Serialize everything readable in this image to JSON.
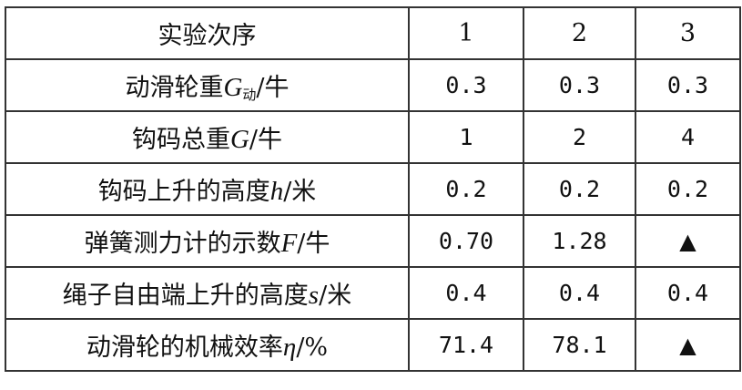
{
  "rows": [
    {
      "label": "实验次序",
      "var": "",
      "sub": "",
      "unit": "",
      "values": [
        "1",
        "2",
        "3"
      ]
    },
    {
      "label": "动滑轮重",
      "var": "G",
      "sub": "动",
      "unit": "/牛",
      "values": [
        "0.3",
        "0.3",
        "0.3"
      ]
    },
    {
      "label": "钩码总重",
      "var": "G",
      "sub": "",
      "unit": "/牛",
      "values": [
        "1",
        "2",
        "4"
      ]
    },
    {
      "label": "钩码上升的高度",
      "var": "h",
      "sub": "",
      "unit": "/米",
      "values": [
        "0.2",
        "0.2",
        "0.2"
      ]
    },
    {
      "label": "弹簧测力计的示数",
      "var": "F",
      "sub": "",
      "unit": "/牛",
      "values": [
        "0.70",
        "1.28",
        "▲"
      ]
    },
    {
      "label": "绳子自由端上升的高度",
      "var": "s",
      "sub": "",
      "unit": "/米",
      "values": [
        "0.4",
        "0.4",
        "0.4"
      ]
    },
    {
      "label": "动滑轮的机械效率",
      "var": "η",
      "sub": "",
      "unit": "/%",
      "values": [
        "71.4",
        "78.1",
        "▲"
      ]
    }
  ]
}
